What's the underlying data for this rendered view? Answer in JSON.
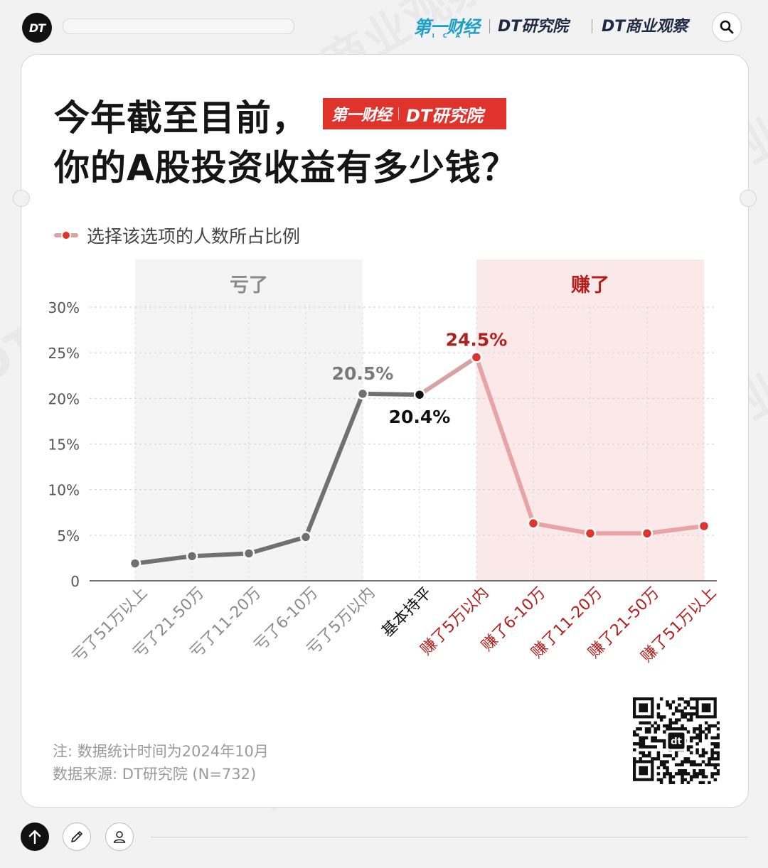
{
  "header": {
    "logo_text": "DT",
    "brand_yicai": "第一财经",
    "brand_yicai_sub": "YICAI",
    "brand_dt_research": "DT研究院",
    "brand_dt_business": "DT商业观察",
    "icons": [
      "dt-logo-icon",
      "search-icon"
    ]
  },
  "card": {
    "title_line1": "今年截至目前，",
    "title_line2": "你的A股投资收益有多少钱？",
    "badge_left": "第一财经",
    "badge_right": "DT研究院",
    "legend_label": "选择该选项的人数所占比例",
    "note": "注: 数据统计时间为2024年10月",
    "source": "数据来源: DT研究院 (N=732)"
  },
  "chart_data": {
    "type": "line",
    "title": "今年截至目前，你的A股投资收益有多少钱？",
    "legend": [
      "选择该选项的人数所占比例"
    ],
    "categories": [
      "亏了51万以上",
      "亏了21-50万",
      "亏了11-20万",
      "亏了6-10万",
      "亏了5万以内",
      "基本持平",
      "赚了5万以内",
      "赚了6-10万",
      "赚了11-20万",
      "赚了21-50万",
      "赚了51万以上"
    ],
    "series": [
      {
        "name": "选择该选项的人数所占比例",
        "values": [
          1.9,
          2.7,
          3.0,
          4.8,
          20.5,
          20.4,
          24.5,
          6.3,
          5.2,
          5.2,
          6.0
        ]
      }
    ],
    "labeled_points": [
      {
        "index": 4,
        "label": "20.5%"
      },
      {
        "index": 5,
        "label": "20.4%"
      },
      {
        "index": 6,
        "label": "24.5%"
      }
    ],
    "yticks": [
      "30%",
      "25%",
      "20%",
      "15%",
      "10%",
      "5%",
      "0"
    ],
    "ylim": [
      0,
      30
    ],
    "grid": true,
    "regions": [
      {
        "label": "亏了",
        "from_index": 0,
        "to_index": 4
      },
      {
        "label": "赚了",
        "from_index": 6,
        "to_index": 10
      }
    ],
    "colors": {
      "loss": "#707070",
      "loss_text": "#8a8a8a",
      "flat": "#111111",
      "gain": "#e8a4a4",
      "gain_dot": "#e0332b",
      "gain_text": "#b3201b",
      "loss_band": "#f4f4f4",
      "gain_band": "#fbe9e9"
    }
  },
  "footer": {
    "icons": [
      "arrow-up-icon",
      "pencil-icon",
      "user-icon"
    ]
  }
}
